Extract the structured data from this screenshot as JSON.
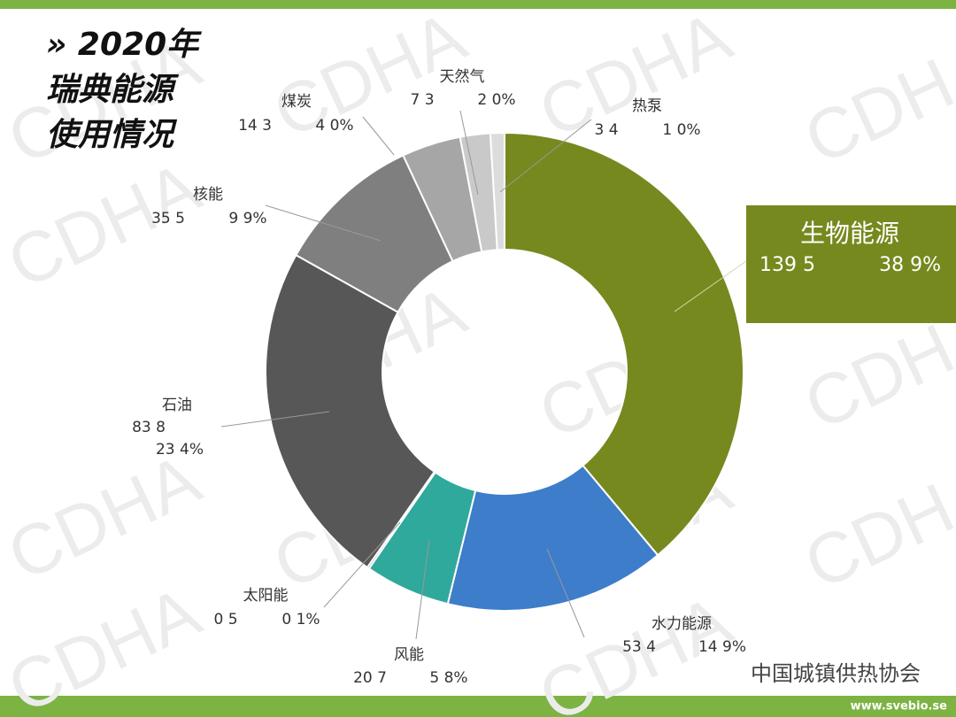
{
  "chart_data": {
    "type": "donut",
    "title_lines": [
      "» 2020年",
      "瑞典能源",
      "使用情况"
    ],
    "categories": [
      "生物能源",
      "水力能源",
      "风能",
      "太阳能",
      "石油",
      "核能",
      "煤炭",
      "天然气",
      "热泵"
    ],
    "values": [
      139.5,
      53.4,
      20.7,
      0.5,
      83.8,
      35.5,
      14.3,
      7.3,
      3.4
    ],
    "value_labels": [
      "139 5",
      "53 4",
      "20 7",
      "0 5",
      "83 8",
      "35 5",
      "14 3",
      "7 3",
      "3 4"
    ],
    "percents": [
      38.9,
      14.9,
      5.8,
      0.1,
      23.4,
      9.9,
      4.0,
      2.0,
      1.0
    ],
    "percent_labels": [
      "38 9%",
      "14 9%",
      "5 8%",
      "0 1%",
      "23 4%",
      "9 9%",
      "4 0%",
      "2 0%",
      "1 0%"
    ],
    "colors": [
      "#76891e",
      "#3d7dca",
      "#2fa99c",
      "#3a3a3a",
      "#575757",
      "#7f7f7f",
      "#a6a6a6",
      "#c9c9c9",
      "#dcdcdc"
    ]
  },
  "watermark": "CDHA",
  "footer_url": "www.svebio.se",
  "footer_org": "中国城镇供热协会"
}
